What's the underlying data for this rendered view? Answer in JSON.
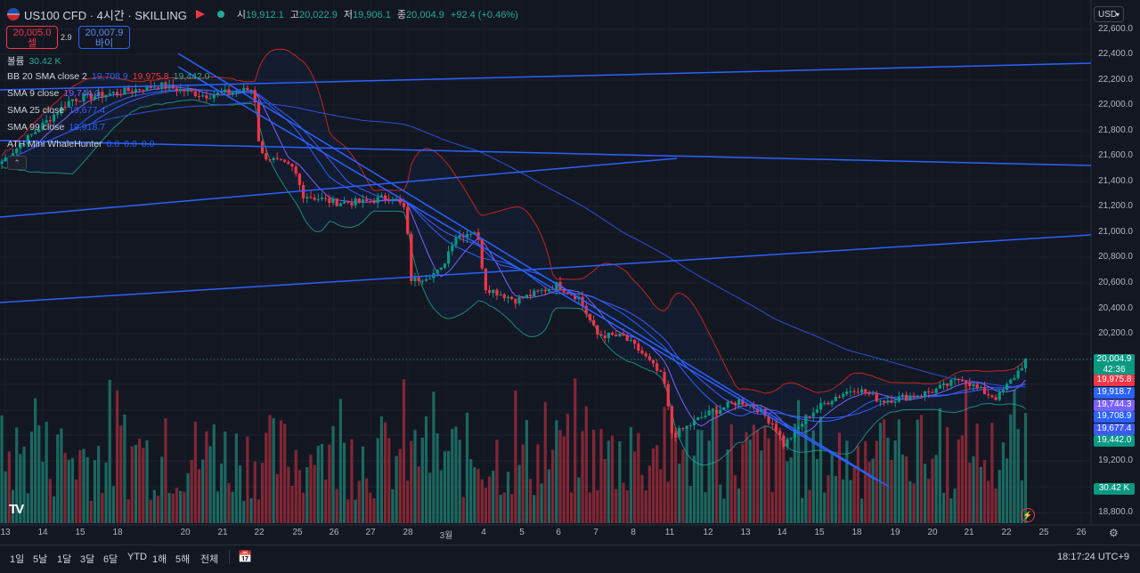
{
  "header": {
    "title": "US100 CFD · 4시간 · SKILLING",
    "ohlc": {
      "o_label": "시",
      "o": "19,912.1",
      "h_label": "고",
      "h": "20,022.9",
      "l_label": "저",
      "l": "19,906.1",
      "c_label": "종",
      "c": "20,004.9",
      "change": "+92.4 (+0.46%)"
    },
    "sell_price": "20,005.0",
    "sell_label": "셀",
    "spread": "2.9",
    "buy_price": "20,007.9",
    "buy_label": "바이",
    "currency": "USD"
  },
  "indicators": [
    {
      "name": "볼륨",
      "values": [
        "30.42 K"
      ],
      "color": "#22ab94"
    },
    {
      "name": "BB 20 SMA close 2",
      "values": [
        "19,708.9",
        "19,975.8",
        "19,442.0"
      ],
      "colors": [
        "#2962ff",
        "#f23645",
        "#22ab94"
      ]
    },
    {
      "name": "SMA 9 close",
      "values": [
        "19,744.3"
      ],
      "color": "#7b61ff"
    },
    {
      "name": "SMA 25 close",
      "values": [
        "19,677.4"
      ],
      "color": "#3d5afe"
    },
    {
      "name": "SMA 99 close",
      "values": [
        "19,918.7"
      ],
      "color": "#2962ff"
    },
    {
      "name": "ATH Mini WhaleHunter",
      "values": [
        "0.0",
        "0.0",
        "0.0"
      ],
      "color": "#2962ff"
    }
  ],
  "price_axis": {
    "ticks": [
      "22,600.0",
      "22,400.0",
      "22,200.0",
      "22,000.0",
      "21,800.0",
      "21,600.0",
      "21,400.0",
      "21,200.0",
      "21,000.0",
      "20,800.0",
      "20,600.0",
      "20,400.0",
      "20,200.0",
      "19,200.0",
      "18,800.0"
    ],
    "labels": [
      {
        "text": "20,004.9",
        "sub": "42:36",
        "color": "#089981"
      },
      {
        "text": "19,975.8",
        "color": "#f23645"
      },
      {
        "text": "19,918.7",
        "color": "#2962ff"
      },
      {
        "text": "19,744.3",
        "color": "#7b61ff"
      },
      {
        "text": "19,708.9",
        "color": "#2962ff"
      },
      {
        "text": "19,677.4",
        "color": "#3d5afe"
      },
      {
        "text": "19,442.0",
        "color": "#089981"
      },
      {
        "text": "30.42 K",
        "color": "#089981"
      }
    ]
  },
  "time_axis": [
    "13",
    "14",
    "15",
    "18",
    "20",
    "21",
    "22",
    "25",
    "26",
    "27",
    "28",
    "3월",
    "4",
    "5",
    "6",
    "7",
    "8",
    "11",
    "12",
    "13",
    "14",
    "15",
    "18",
    "19",
    "20",
    "21",
    "22",
    "25",
    "26"
  ],
  "timeframes": [
    "1일",
    "5날",
    "1달",
    "3달",
    "6달",
    "YTD",
    "1해",
    "5해",
    "전체"
  ],
  "clock": "18:17:24 UTC+9",
  "logo": "TV",
  "chart_data": {
    "type": "candlestick",
    "symbol": "US100 CFD",
    "interval": "4시간",
    "price_range": [
      18700,
      22700
    ],
    "last_close": 20004.9
  }
}
